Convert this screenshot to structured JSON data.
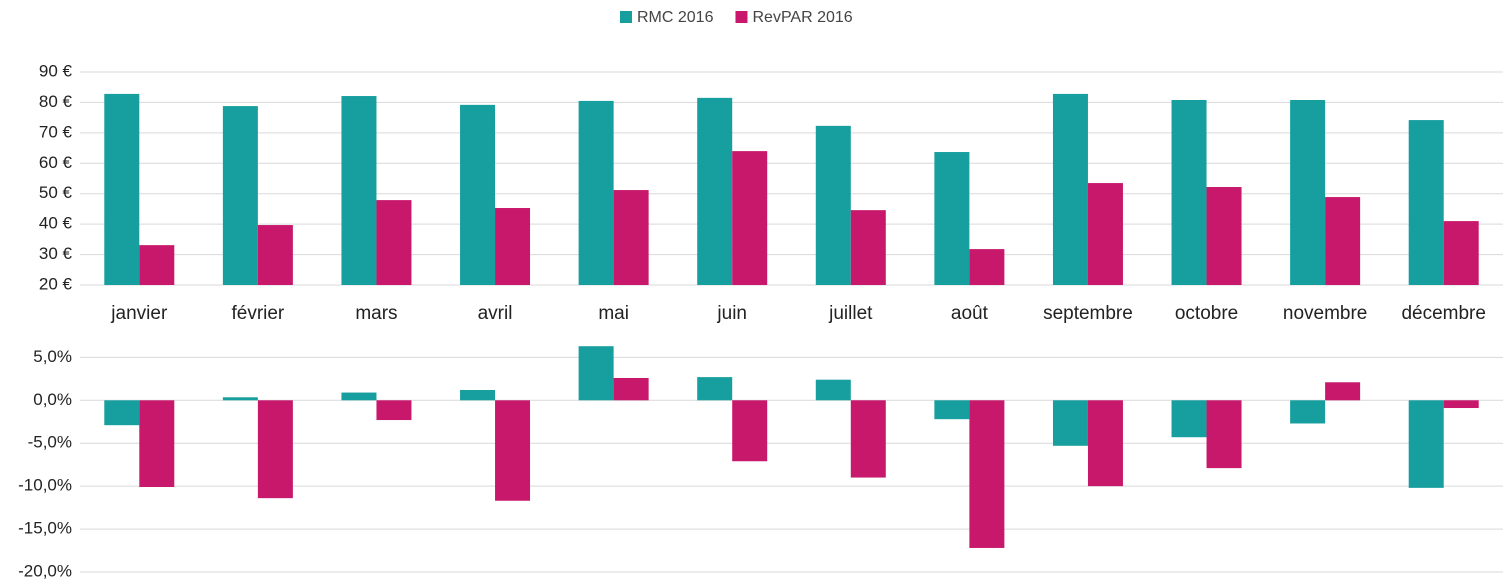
{
  "chart_data": [
    {
      "type": "bar",
      "categories": [
        "janvier",
        "février",
        "mars",
        "avril",
        "mai",
        "juin",
        "juillet",
        "août",
        "septembre",
        "octobre",
        "novembre",
        "décembre"
      ],
      "series": [
        {
          "name": "RMC 2016",
          "color": "#179e9e",
          "values": [
            82.8,
            78.8,
            82.1,
            79.2,
            80.5,
            81.5,
            72.3,
            63.7,
            82.8,
            80.8,
            80.8,
            74.2
          ]
        },
        {
          "name": "RevPAR 2016",
          "color": "#c8186c",
          "values": [
            33.1,
            39.7,
            47.9,
            45.3,
            51.2,
            64.0,
            44.6,
            31.8,
            53.5,
            52.2,
            48.9,
            41.0
          ]
        }
      ],
      "ylim": [
        20,
        90
      ],
      "yticks": [
        {
          "value": 20,
          "label": "20 €"
        },
        {
          "value": 30,
          "label": "30 €"
        },
        {
          "value": 40,
          "label": "40 €"
        },
        {
          "value": 50,
          "label": "50 €"
        },
        {
          "value": 60,
          "label": "60 €"
        },
        {
          "value": 70,
          "label": "70 €"
        },
        {
          "value": 80,
          "label": "80 €"
        },
        {
          "value": 90,
          "label": "90 €"
        }
      ],
      "grid": true,
      "legend": "top"
    },
    {
      "type": "bar",
      "series": [
        {
          "color": "#179e9e",
          "values": [
            -2.9,
            0.35,
            0.9,
            1.2,
            6.3,
            2.7,
            2.4,
            -2.2,
            -5.3,
            -4.3,
            -2.7,
            -10.2
          ]
        },
        {
          "color": "#c8186c",
          "values": [
            -10.1,
            -11.4,
            -2.3,
            -11.7,
            2.6,
            -7.1,
            -9.0,
            -17.2,
            -10.0,
            -7.9,
            2.1,
            -0.9
          ]
        }
      ],
      "ylim": [
        -20,
        7
      ],
      "yticks": [
        {
          "value": -20,
          "label": "-20,0%"
        },
        {
          "value": -15,
          "label": "-15,0%"
        },
        {
          "value": -10,
          "label": "-10,0%"
        },
        {
          "value": -5,
          "label": "-5,0%"
        },
        {
          "value": 0,
          "label": "0,0%"
        },
        {
          "value": 5,
          "label": "5,0%"
        }
      ],
      "grid": true
    }
  ]
}
